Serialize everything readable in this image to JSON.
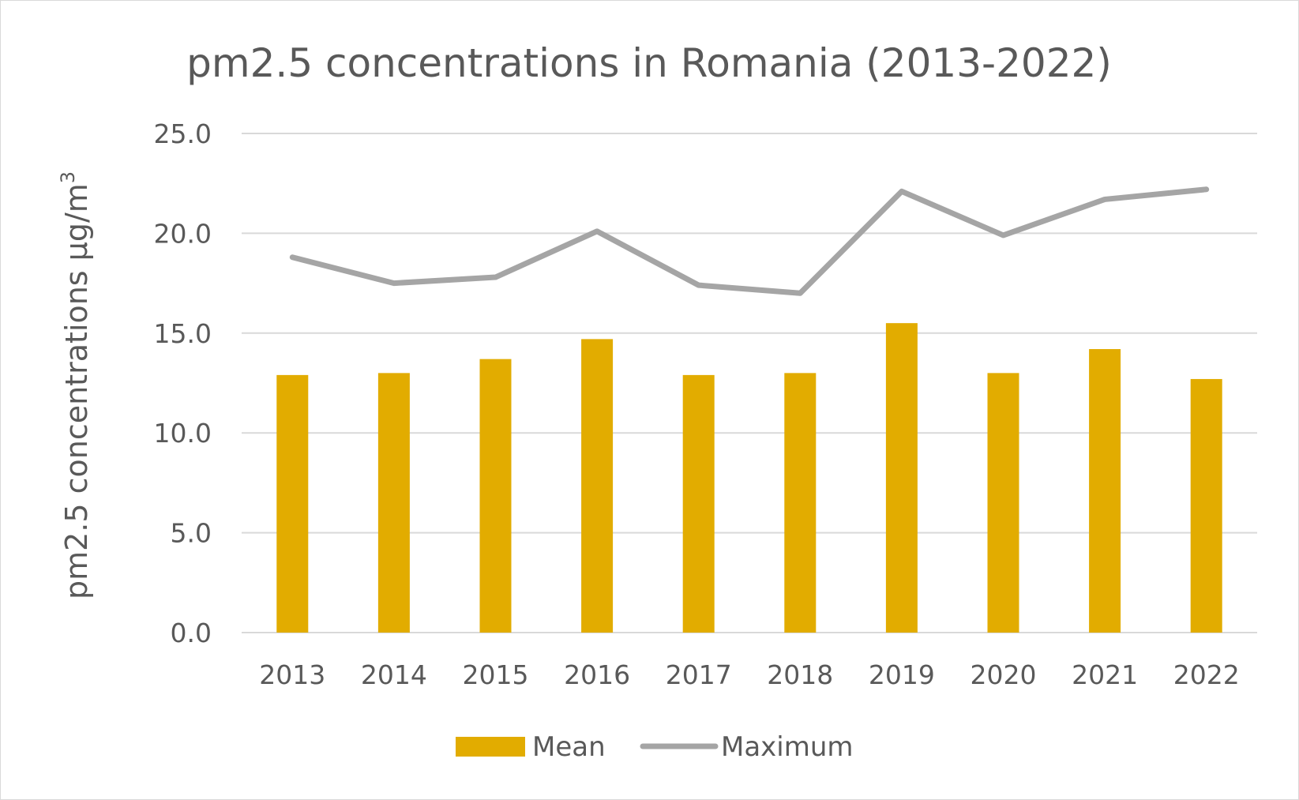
{
  "chart_data": {
    "type": "bar",
    "title": "pm2.5 concentrations in Romania (2013-2022)",
    "xlabel": "",
    "ylabel": "pm2.5 concentrations µg/m",
    "ylabel_superscript": "3",
    "categories": [
      "2013",
      "2014",
      "2015",
      "2016",
      "2017",
      "2018",
      "2019",
      "2020",
      "2021",
      "2022"
    ],
    "ylim": [
      0,
      25
    ],
    "yticks": [
      "0.0",
      "5.0",
      "10.0",
      "15.0",
      "20.0",
      "25.0"
    ],
    "grid": true,
    "legend_position": "bottom",
    "series": [
      {
        "name": "Mean",
        "type": "bar",
        "color": "#E2AC00",
        "values": [
          12.9,
          13.0,
          13.7,
          14.7,
          12.9,
          13.0,
          15.5,
          13.0,
          14.2,
          12.7
        ]
      },
      {
        "name": "Maximum",
        "type": "line",
        "color": "#A5A5A5",
        "values": [
          18.8,
          17.5,
          17.8,
          20.1,
          17.4,
          17.0,
          22.1,
          19.9,
          21.7,
          22.2
        ]
      }
    ]
  }
}
